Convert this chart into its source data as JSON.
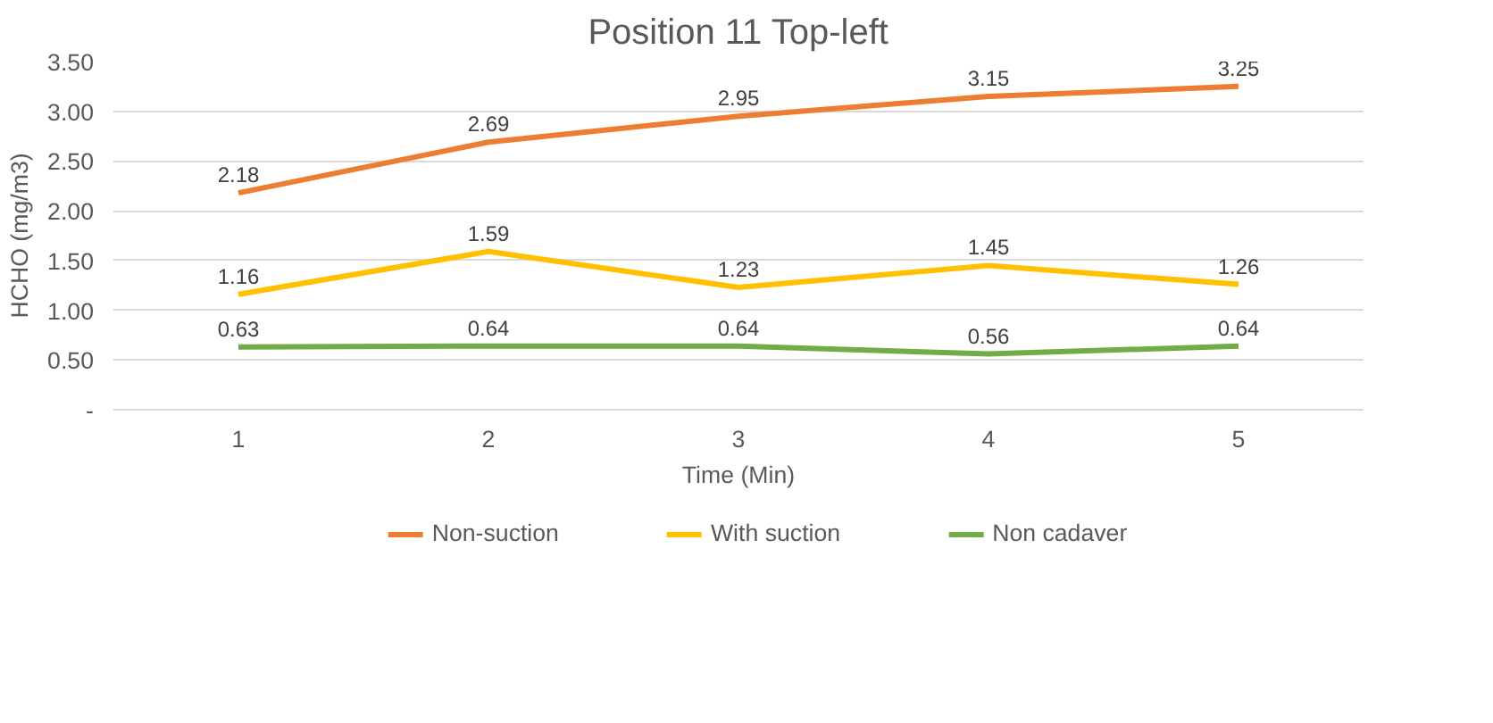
{
  "chart_data": {
    "type": "line",
    "title": "Position 11 Top-left",
    "xlabel": "Time (Min)",
    "ylabel": "HCHO (mg/m3)",
    "categories": [
      "1",
      "2",
      "3",
      "4",
      "5"
    ],
    "series": [
      {
        "name": "Non-suction",
        "color": "#ed7d31",
        "values": [
          2.18,
          2.69,
          2.95,
          3.15,
          3.25
        ]
      },
      {
        "name": "With suction",
        "color": "#ffc000",
        "values": [
          1.16,
          1.59,
          1.23,
          1.45,
          1.26
        ]
      },
      {
        "name": "Non cadaver",
        "color": "#70ad47",
        "values": [
          0.63,
          0.64,
          0.64,
          0.56,
          0.64
        ]
      }
    ],
    "ylim": [
      0,
      3.5
    ],
    "yticks": [
      {
        "value": 0,
        "label": "-"
      },
      {
        "value": 0.5,
        "label": "0.50"
      },
      {
        "value": 1,
        "label": "1.00"
      },
      {
        "value": 1.5,
        "label": "1.50"
      },
      {
        "value": 2,
        "label": "2.00"
      },
      {
        "value": 2.5,
        "label": "2.50"
      },
      {
        "value": 3,
        "label": "3.00"
      },
      {
        "value": 3.5,
        "label": "3.50"
      }
    ],
    "grid": "y",
    "legend": "bottom",
    "data_labels": true,
    "marker": "none",
    "line_style": "solid"
  }
}
